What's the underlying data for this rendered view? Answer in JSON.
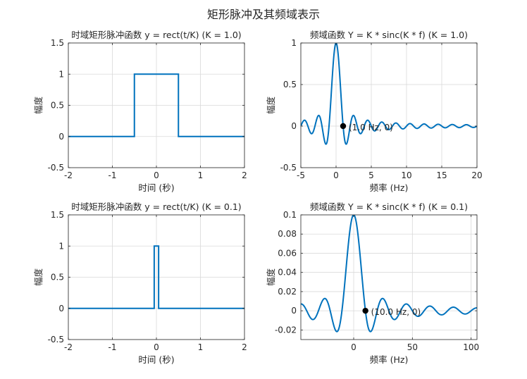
{
  "figure": {
    "title": "矩形脉冲及其频域表示"
  },
  "colors": {
    "line": "#0072BD",
    "grid": "#d9d9d9",
    "axis": "#262626",
    "marker": "#000000",
    "background": "#ffffff"
  },
  "chart_data": [
    {
      "type": "line",
      "title": "时域矩形脉冲函数 y = rect(t/K) (K = 1.0)",
      "xlabel": "时间 (秒)",
      "ylabel": "幅度",
      "xlim": [
        -2,
        2
      ],
      "ylim": [
        -0.5,
        1.5
      ],
      "xticks": [
        -2,
        -1,
        0,
        1,
        2
      ],
      "yticks": [
        -0.5,
        0,
        0.5,
        1,
        1.5
      ],
      "xtick_labels": [
        "-2",
        "-1",
        "0",
        "1",
        "2"
      ],
      "ytick_labels": [
        "-0.5",
        "0",
        "0.5",
        "1",
        "1.5"
      ],
      "grid": true,
      "series": [
        {
          "x": [
            -2,
            -0.5,
            -0.5,
            0.5,
            0.5,
            2
          ],
          "y": [
            0,
            0,
            1,
            1,
            0,
            0
          ]
        }
      ]
    },
    {
      "type": "line",
      "title": "频域函数 Y = K * sinc(K * f) (K = 1.0)",
      "xlabel": "频率 (Hz)",
      "ylabel": "幅度",
      "xlim": [
        -5,
        20
      ],
      "ylim": [
        -0.5,
        1
      ],
      "xticks": [
        -5,
        0,
        5,
        10,
        15,
        20
      ],
      "yticks": [
        -0.5,
        0,
        0.5,
        1
      ],
      "xtick_labels": [
        "-5",
        "0",
        "5",
        "10",
        "15",
        "20"
      ],
      "ytick_labels": [
        "-0.5",
        "0",
        "0.5",
        "1"
      ],
      "grid": true,
      "series": [
        {
          "function": "sinc",
          "K": 1.0,
          "x_range": [
            -5,
            20
          ],
          "samples": 600
        }
      ],
      "annotations": [
        {
          "x": 1.0,
          "y": 0,
          "text": "(1.0 Hz, 0)"
        }
      ]
    },
    {
      "type": "line",
      "title": "时域矩形脉冲函数 y = rect(t/K) (K = 0.1)",
      "xlabel": "时间 (秒)",
      "ylabel": "幅度",
      "xlim": [
        -2,
        2
      ],
      "ylim": [
        -0.5,
        1.5
      ],
      "xticks": [
        -2,
        -1,
        0,
        1,
        2
      ],
      "yticks": [
        -0.5,
        0,
        0.5,
        1,
        1.5
      ],
      "xtick_labels": [
        "-2",
        "-1",
        "0",
        "1",
        "2"
      ],
      "ytick_labels": [
        "-0.5",
        "0",
        "0.5",
        "1",
        "1.5"
      ],
      "grid": true,
      "series": [
        {
          "x": [
            -2,
            -0.05,
            -0.05,
            0.05,
            0.05,
            2
          ],
          "y": [
            0,
            0,
            1,
            1,
            0,
            0
          ]
        }
      ]
    },
    {
      "type": "line",
      "title": "频域函数 Y = K * sinc(K * f) (K = 0.1)",
      "xlabel": "频率 (Hz)",
      "ylabel": "幅度",
      "xlim": [
        -45,
        105
      ],
      "ylim": [
        -0.03,
        0.1
      ],
      "xticks": [
        0,
        50,
        100
      ],
      "yticks": [
        -0.02,
        0,
        0.02,
        0.04,
        0.06,
        0.08,
        0.1
      ],
      "xtick_labels": [
        "0",
        "50",
        "100"
      ],
      "ytick_labels": [
        "-0.02",
        "0",
        "0.02",
        "0.04",
        "0.06",
        "0.08",
        "0.1"
      ],
      "grid": true,
      "series": [
        {
          "function": "sinc",
          "K": 0.1,
          "x_range": [
            -45,
            105
          ],
          "samples": 600
        }
      ],
      "annotations": [
        {
          "x": 10.0,
          "y": 0,
          "text": "(10.0 Hz, 0)"
        }
      ]
    }
  ]
}
